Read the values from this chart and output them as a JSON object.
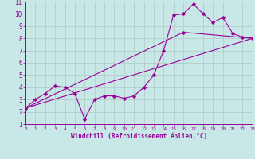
{
  "xlabel": "Windchill (Refroidissement éolien,°C)",
  "xlim": [
    0,
    23
  ],
  "ylim": [
    1,
    11
  ],
  "xticks": [
    0,
    1,
    2,
    3,
    4,
    5,
    6,
    7,
    8,
    9,
    10,
    11,
    12,
    13,
    14,
    15,
    16,
    17,
    18,
    19,
    20,
    21,
    22,
    23
  ],
  "yticks": [
    1,
    2,
    3,
    4,
    5,
    6,
    7,
    8,
    9,
    10,
    11
  ],
  "bg_color": "#c8e8e8",
  "line_color": "#990099",
  "grid_color": "#b0c8c8",
  "series1_x": [
    0,
    1,
    2,
    3,
    4,
    5,
    6,
    7,
    8,
    9,
    10,
    11,
    12,
    13,
    14,
    15,
    16,
    17,
    18,
    19,
    20,
    21,
    22,
    23
  ],
  "series1_y": [
    2.3,
    3.0,
    3.5,
    4.1,
    4.0,
    3.5,
    1.4,
    3.0,
    3.3,
    3.3,
    3.1,
    3.3,
    4.0,
    5.0,
    7.0,
    9.9,
    10.0,
    10.8,
    10.0,
    9.3,
    9.7,
    8.4,
    8.1,
    8.0
  ],
  "series2_x": [
    0,
    23
  ],
  "series2_y": [
    2.3,
    8.0
  ],
  "series3_x": [
    0,
    16,
    23
  ],
  "series3_y": [
    2.3,
    8.5,
    8.0
  ],
  "xlabel_fontsize": 5.5,
  "xlabel_fontweight": "bold",
  "ytick_fontsize": 5.5,
  "xtick_fontsize": 4.2
}
